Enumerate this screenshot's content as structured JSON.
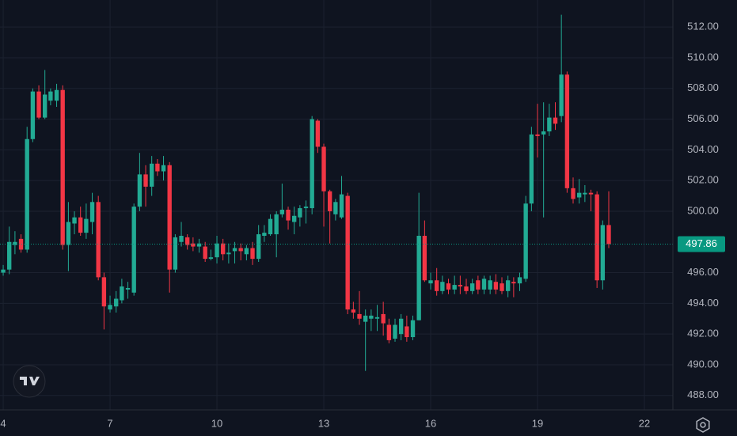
{
  "chart_data": {
    "type": "candlestick",
    "x": [
      4,
      4.17,
      4.33,
      4.5,
      4.67,
      4.83,
      5,
      5.17,
      5.33,
      5.5,
      5.67,
      5.83,
      6,
      6.17,
      6.33,
      6.5,
      6.67,
      6.83,
      7,
      7.17,
      7.33,
      7.5,
      7.67,
      7.83,
      8,
      8.17,
      8.33,
      8.5,
      8.67,
      8.83,
      9,
      9.17,
      9.33,
      9.5,
      9.67,
      9.83,
      10,
      10.17,
      10.33,
      10.5,
      10.67,
      10.83,
      11,
      11.17,
      11.33,
      11.5,
      11.67,
      11.83,
      12,
      12.17,
      12.33,
      12.5,
      12.67,
      12.83,
      13,
      13.17,
      13.33,
      13.5,
      13.67,
      13.83,
      14,
      14.17,
      14.33,
      14.5,
      14.67,
      14.83,
      15,
      15.17,
      15.33,
      15.5,
      15.67,
      15.83,
      16,
      16.17,
      16.33,
      16.5,
      16.67,
      16.83,
      17,
      17.17,
      17.33,
      17.5,
      17.67,
      17.83,
      18,
      18.17,
      18.33,
      18.5,
      18.67,
      18.83,
      19,
      19.17,
      19.33,
      19.5,
      19.67,
      19.83,
      20,
      20.17,
      20.33,
      20.5,
      20.67,
      20.83,
      21
    ],
    "open": [
      496.0,
      496.2,
      497.8,
      498.2,
      497.5,
      504.7,
      507.8,
      506.1,
      507.2,
      507.2,
      507.9,
      497.8,
      499.2,
      499.6,
      498.6,
      499.3,
      500.6,
      495.7,
      493.6,
      493.8,
      494.2,
      494.9,
      494.7,
      500.3,
      502.4,
      501.6,
      503.1,
      502.6,
      503.0,
      496.2,
      498.0,
      498.3,
      497.9,
      497.7,
      497.7,
      496.9,
      497.0,
      497.9,
      497.2,
      497.4,
      497.6,
      497.2,
      497.6,
      496.9,
      498.4,
      498.5,
      498.5,
      499.8,
      500.1,
      499.3,
      499.6,
      500.2,
      500.2,
      505.9,
      504.2,
      501.3,
      499.8,
      499.6,
      501.0,
      493.6,
      493.3,
      492.8,
      493.0,
      493.0,
      493.3,
      492.6,
      491.7,
      492.0,
      492.5,
      491.8,
      492.9,
      498.4,
      495.3,
      495.5,
      494.8,
      495.3,
      494.9,
      495.2,
      495.1,
      494.8,
      495.5,
      494.9,
      494.9,
      495.4,
      495.3,
      494.8,
      495.4,
      495.3,
      495.6,
      500.5,
      505.0,
      505.0,
      505.2,
      506.1,
      506.2,
      508.9,
      501.5,
      500.9,
      501.1,
      501.2,
      501.1,
      495.5,
      499.1
    ],
    "high": [
      496.5,
      499.0,
      498.7,
      498.5,
      505.5,
      508.0,
      508.2,
      509.2,
      508.0,
      508.3,
      508.2,
      500.6,
      500.0,
      500.3,
      500.5,
      501.2,
      501.0,
      496.0,
      494.5,
      494.8,
      495.6,
      495.4,
      500.5,
      503.8,
      503.0,
      503.6,
      503.4,
      503.6,
      503.2,
      498.5,
      499.3,
      498.5,
      498.3,
      498.2,
      498.0,
      497.5,
      498.4,
      498.2,
      497.9,
      498.0,
      497.9,
      497.8,
      498.0,
      499.1,
      499.1,
      499.8,
      500.0,
      501.8,
      500.3,
      500.3,
      500.4,
      500.7,
      506.2,
      506.0,
      504.4,
      501.4,
      500.8,
      502.3,
      501.2,
      494.1,
      494.8,
      493.6,
      493.6,
      493.9,
      494.1,
      493.0,
      493.0,
      493.3,
      493.2,
      493.2,
      501.2,
      499.4,
      496.0,
      496.3,
      495.8,
      495.6,
      495.8,
      495.8,
      495.6,
      495.6,
      495.8,
      495.8,
      495.8,
      495.9,
      495.7,
      495.8,
      495.7,
      496.0,
      501.0,
      505.5,
      507.0,
      507.1,
      507.0,
      507.1,
      512.8,
      509.1,
      502.2,
      502.1,
      501.7,
      501.4,
      501.3,
      499.4,
      501.3
    ],
    "low": [
      495.8,
      495.9,
      497.2,
      497.3,
      497.3,
      504.5,
      506.0,
      506.0,
      506.9,
      506.8,
      497.5,
      496.1,
      498.5,
      498.4,
      498.2,
      498.5,
      495.5,
      492.3,
      493.4,
      493.4,
      494.0,
      494.3,
      494.5,
      500.0,
      500.3,
      501.0,
      502.3,
      502.0,
      494.7,
      496.0,
      497.7,
      497.5,
      497.4,
      497.3,
      496.7,
      496.8,
      496.6,
      496.8,
      496.6,
      496.6,
      496.8,
      496.8,
      496.5,
      496.7,
      498.0,
      498.4,
      497.0,
      499.6,
      498.8,
      498.5,
      499.0,
      499.2,
      499.8,
      503.8,
      499.0,
      497.9,
      499.4,
      499.5,
      493.3,
      493.0,
      492.6,
      489.6,
      492.2,
      492.2,
      491.9,
      491.4,
      491.5,
      491.6,
      491.5,
      491.6,
      492.9,
      495.4,
      494.9,
      494.5,
      494.6,
      494.6,
      494.6,
      494.6,
      494.6,
      494.6,
      494.6,
      494.6,
      494.6,
      494.6,
      494.6,
      494.4,
      494.4,
      494.8,
      495.4,
      500.0,
      503.5,
      499.6,
      504.9,
      505.3,
      505.8,
      501.2,
      500.5,
      500.5,
      500.6,
      500.0,
      495.0,
      494.9,
      497.6
    ],
    "close": [
      496.2,
      498.0,
      498.0,
      497.5,
      504.7,
      507.8,
      506.1,
      507.6,
      507.8,
      507.9,
      497.8,
      499.3,
      499.6,
      498.6,
      499.5,
      500.6,
      495.7,
      493.8,
      493.9,
      494.3,
      495.1,
      495.0,
      500.3,
      502.4,
      501.6,
      503.1,
      502.6,
      503.0,
      496.2,
      498.3,
      498.4,
      497.8,
      497.7,
      497.9,
      496.9,
      497.0,
      497.9,
      497.2,
      497.3,
      497.6,
      497.4,
      497.6,
      496.9,
      498.5,
      498.6,
      499.5,
      499.8,
      500.1,
      499.4,
      499.7,
      500.2,
      500.3,
      506.0,
      504.2,
      501.3,
      500.0,
      500.6,
      501.1,
      493.6,
      493.4,
      493.0,
      493.2,
      493.2,
      493.1,
      492.7,
      491.6,
      492.6,
      493.0,
      491.8,
      492.9,
      498.4,
      495.5,
      495.5,
      494.8,
      495.4,
      494.9,
      495.2,
      495.1,
      494.8,
      495.3,
      494.9,
      495.6,
      495.5,
      494.9,
      494.8,
      495.5,
      495.3,
      495.7,
      500.5,
      505.0,
      504.9,
      505.2,
      506.1,
      505.7,
      508.9,
      501.5,
      500.8,
      501.2,
      501.2,
      501.1,
      495.5,
      499.1,
      497.86
    ],
    "up_color": "#22ab94",
    "down_color": "#f23645",
    "xlim": [
      3.91,
      22.8
    ],
    "xticks": [
      4,
      7,
      10,
      13,
      16,
      19,
      22
    ],
    "ylim": [
      487.06,
      513.76
    ],
    "yticks": [
      {
        "value": 488,
        "label": "488.00"
      },
      {
        "value": 490,
        "label": "490.00"
      },
      {
        "value": 492,
        "label": "492.00"
      },
      {
        "value": 494,
        "label": "494.00"
      },
      {
        "value": 496,
        "label": "496.00"
      },
      {
        "value": 500,
        "label": "500.00"
      },
      {
        "value": 502,
        "label": "502.00"
      },
      {
        "value": 504,
        "label": "504.00"
      },
      {
        "value": 506,
        "label": "506.00"
      },
      {
        "value": 508,
        "label": "508.00"
      },
      {
        "value": 510,
        "label": "510.00"
      },
      {
        "value": 512,
        "label": "512.00"
      }
    ],
    "grid": true,
    "last_price": 497.86,
    "last_price_color": "#089981"
  }
}
